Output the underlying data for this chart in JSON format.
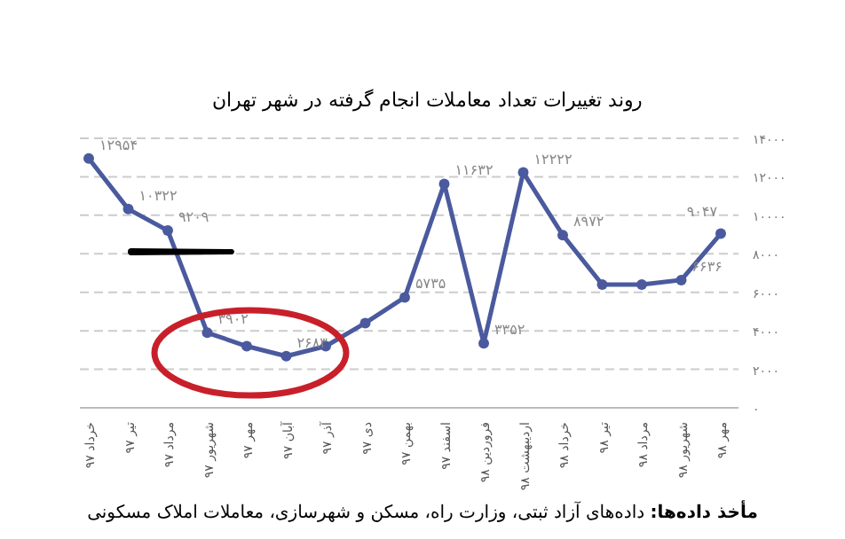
{
  "chart_data": {
    "type": "line",
    "title": "روند تغییرات تعداد معاملات انجام گرفته در شهر تهران",
    "categories": [
      "خرداد ۹۷",
      "تیر ۹۷",
      "مرداد ۹۷",
      "شهریور ۹۷",
      "مهر ۹۷",
      "آبان ۹۷",
      "آذر ۹۷",
      "دی ۹۷",
      "بهمن ۹۷",
      "اسفند ۹۷",
      "فروردین ۹۸",
      "اردیبهشت ۹۸",
      "خرداد ۹۸",
      "تیر ۹۸",
      "مرداد ۹۸",
      "شهریور ۹۸",
      "مهر ۹۸"
    ],
    "series": [
      {
        "color": "#4b5a9e",
        "values": [
          12954,
          10322,
          9209,
          3902,
          3200,
          2683,
          3200,
          4400,
          5735,
          11632,
          3352,
          12222,
          8972,
          6400,
          6400,
          6636,
          9047
        ],
        "value_labels": [
          "۱۲۹۵۴",
          "۱۰۳۲۲",
          "۹۲۰۹",
          "۳۹۰۲",
          null,
          "۲۶۸۳",
          null,
          null,
          "۵۷۳۵",
          "۱۱۶۳۲",
          "۳۳۵۲",
          "۱۲۲۲۲",
          "۸۹۷۲",
          null,
          null,
          "۶۶۳۶",
          "۹۰۴۷"
        ]
      }
    ],
    "ylim": [
      0,
      14000
    ],
    "yticks": [
      {
        "value": 0,
        "label": "۰"
      },
      {
        "value": 2000,
        "label": "۲۰۰۰"
      },
      {
        "value": 4000,
        "label": "۴۰۰۰"
      },
      {
        "value": 6000,
        "label": "۶۰۰۰"
      },
      {
        "value": 8000,
        "label": "۸۰۰۰"
      },
      {
        "value": 10000,
        "label": "۱۰۰۰۰"
      },
      {
        "value": 12000,
        "label": "۱۲۰۰۰"
      },
      {
        "value": 14000,
        "label": "۱۴۰۰۰"
      }
    ],
    "grid": "y",
    "marker": "circle",
    "line_style": "solid",
    "annotations": [
      "مأخذ داده‌ها: داده‌های آزاد ثبتی، وزارت راه، مسکن و شهرسازی، معاملات املاک مسکونی"
    ]
  }
}
